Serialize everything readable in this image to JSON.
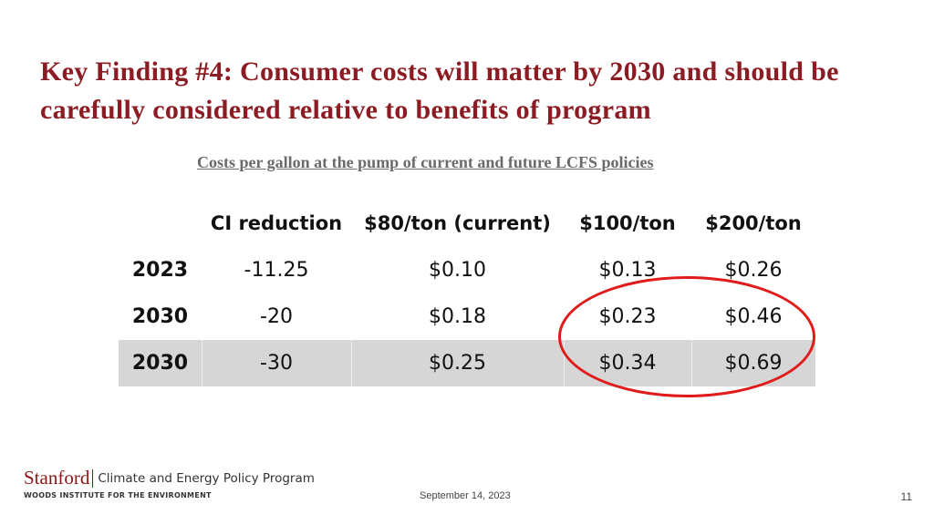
{
  "slide": {
    "title": "Key Finding #4: Consumer costs will matter by 2030 and should be carefully considered relative to benefits of program",
    "subtitle": "Costs per gallon at the pump of current and future LCFS policies"
  },
  "table": {
    "headers": [
      "",
      "CI reduction",
      "$80/ton (current)",
      "$100/ton",
      "$200/ton"
    ],
    "rows": [
      [
        "2023",
        "-11.25",
        "$0.10",
        "$0.13",
        "$0.26"
      ],
      [
        "2030",
        "-20",
        "$0.18",
        "$0.23",
        "$0.46"
      ],
      [
        "2030",
        "-30",
        "$0.25",
        "$0.34",
        "$0.69"
      ]
    ]
  },
  "annotation": {
    "color": "#e11b1b"
  },
  "footer": {
    "logo_text": "Stanford",
    "program": "Climate and Energy Policy Program",
    "institute": "WOODS INSTITUTE FOR THE ENVIRONMENT",
    "date": "September 14, 2023",
    "page_number": "11"
  },
  "colors": {
    "title": "#8c1c23",
    "shaded_row": "#d6d6d6"
  }
}
